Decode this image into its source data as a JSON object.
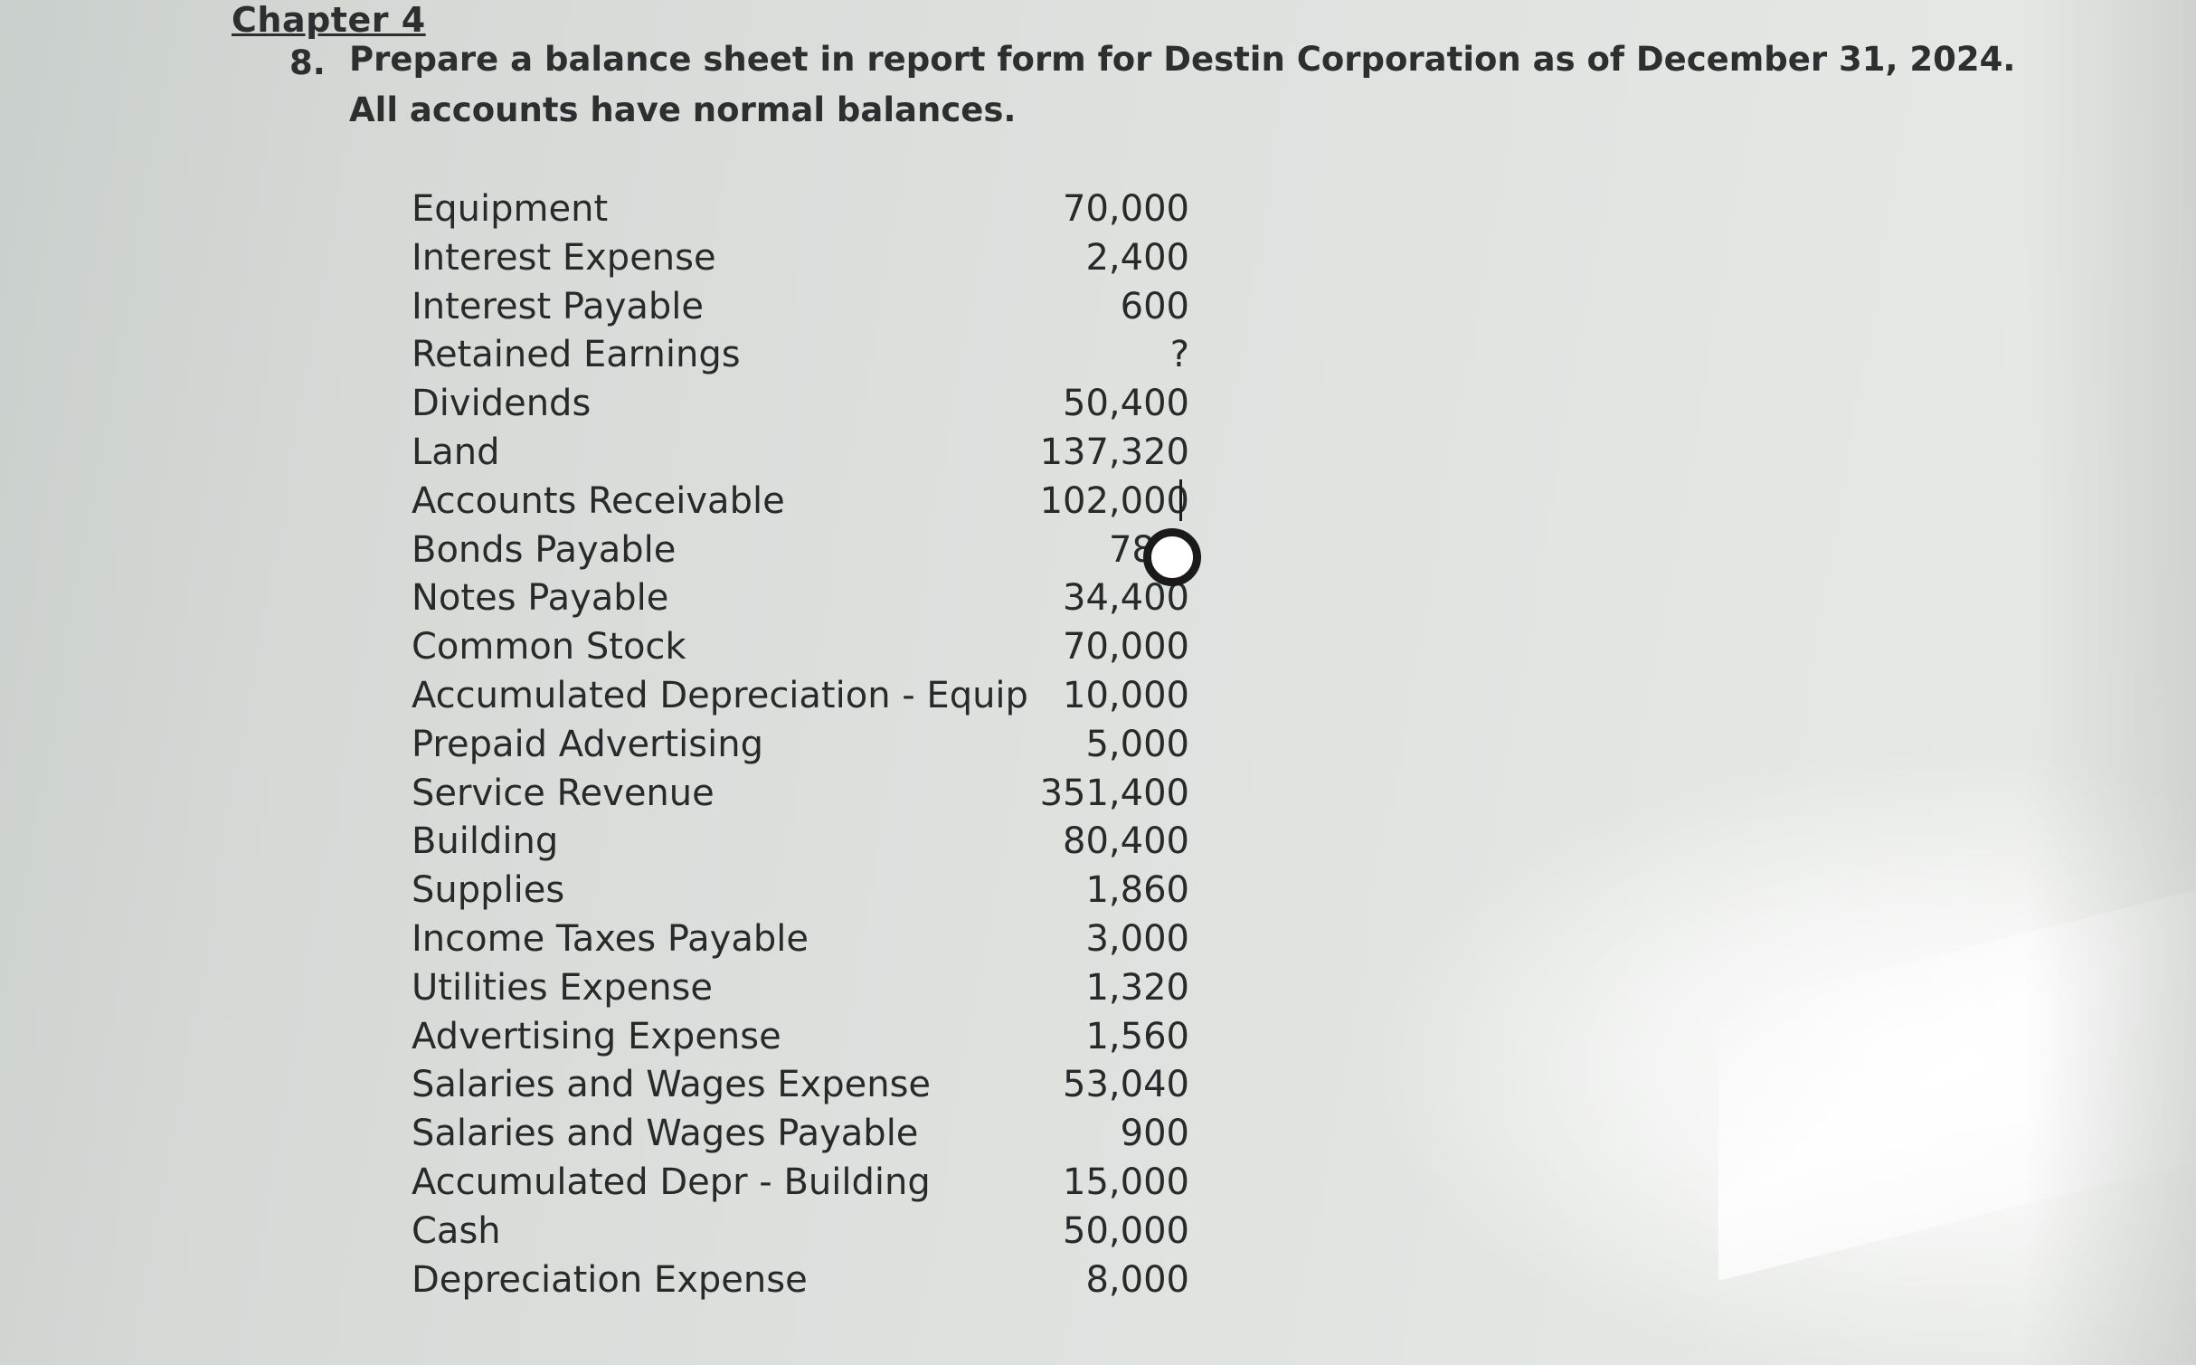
{
  "header": {
    "chapter": "Chapter 4",
    "question_number": "8.",
    "question_line1": "Prepare a balance sheet in report form for Destin Corporation as of December 31, 2024.",
    "question_line2": "All accounts have normal balances."
  },
  "accounts": [
    {
      "name": "Equipment",
      "value": "70,000"
    },
    {
      "name": "Interest Expense",
      "value": "2,400"
    },
    {
      "name": "Interest Payable",
      "value": "600"
    },
    {
      "name": "Retained Earnings",
      "value": "?"
    },
    {
      "name": "Dividends",
      "value": "50,400"
    },
    {
      "name": "Land",
      "value": "137,320"
    },
    {
      "name": "Accounts Receivable",
      "value": "102,000"
    },
    {
      "name": "Bonds Payable",
      "value": "78,0"
    },
    {
      "name": "Notes Payable",
      "value": "34,400"
    },
    {
      "name": "Common Stock",
      "value": "70,000"
    },
    {
      "name": "Accumulated Depreciation - Equip",
      "value": "10,000"
    },
    {
      "name": "Prepaid Advertising",
      "value": "5,000"
    },
    {
      "name": "Service Revenue",
      "value": "351,400"
    },
    {
      "name": "Building",
      "value": "80,400"
    },
    {
      "name": "Supplies",
      "value": "1,860"
    },
    {
      "name": "Income Taxes Payable",
      "value": "3,000"
    },
    {
      "name": "Utilities Expense",
      "value": "1,320"
    },
    {
      "name": "Advertising Expense",
      "value": "1,560"
    },
    {
      "name": "Salaries and Wages Expense",
      "value": "53,040"
    },
    {
      "name": "Salaries and Wages Payable",
      "value": "900"
    },
    {
      "name": "Accumulated Depr - Building",
      "value": "15,000"
    },
    {
      "name": "Cash",
      "value": "50,000"
    },
    {
      "name": "Depreciation Expense",
      "value": "8,000"
    }
  ],
  "cursor_icon": "busy-ring-icon"
}
